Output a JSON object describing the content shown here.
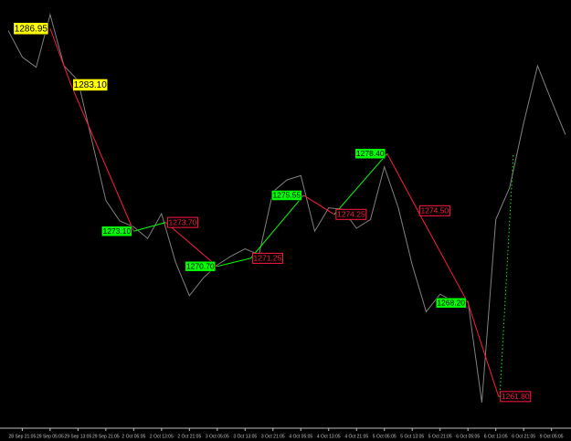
{
  "chart_data": {
    "type": "line",
    "x": [
      0,
      1,
      2,
      3,
      4,
      5,
      6,
      7,
      8,
      9,
      10,
      11,
      12,
      13,
      14,
      15,
      16,
      17,
      18,
      19,
      20,
      21,
      22,
      23,
      24,
      25,
      26,
      27,
      28,
      29,
      30,
      31,
      32,
      33,
      34,
      35,
      36,
      37,
      38,
      39,
      40
    ],
    "categories": [
      null,
      "28 Sep 21:05",
      null,
      "29 Sep 05:05",
      null,
      "29 Sep 13:05",
      null,
      "29 Sep 21:05",
      null,
      "2 Oct 05:05",
      null,
      "2 Oct 13:05",
      null,
      "2 Oct 21:05",
      null,
      "3 Oct 05:05",
      null,
      "3 Oct 13:05",
      null,
      "3 Oct 21:05",
      null,
      "4 Oct 05:05",
      null,
      "4 Oct 13:05",
      null,
      "4 Oct 21:05",
      null,
      "5 Oct 05:05",
      null,
      "5 Oct 13:05",
      null,
      "5 Oct 21:05",
      null,
      "6 Oct 05:05",
      null,
      "6 Oct 13:05",
      null,
      "6 Oct 21:05",
      null,
      "9 Oct 05:05",
      null
    ],
    "series": [
      {
        "color": "#808080",
        "values": [
          1286.8,
          1285.0,
          1284.3,
          1287.9,
          1284.4,
          1283.4,
          1279.3,
          1275.2,
          1273.8,
          1273.4,
          1272.6,
          1274.3,
          1271.0,
          1268.7,
          1269.9,
          1270.8,
          1271.4,
          1271.9,
          1271.5,
          1275.8,
          1276.6,
          1276.9,
          1273.1,
          1274.7,
          1274.6,
          1273.3,
          1273.9,
          1277.5,
          1274.7,
          1270.8,
          1267.6,
          1268.8,
          1268.3,
          1268.3,
          1261.4,
          1273.9,
          1276.1,
          1280.5,
          1284.4,
          1282.0,
          1279.7
        ]
      }
    ],
    "zigzag": {
      "up_color": "#00ff00",
      "down_color": "#ff1a40",
      "x": [
        3,
        4.5,
        9,
        11.3,
        15,
        17.4,
        21.2,
        23.4,
        27.2,
        29.4,
        33,
        35.2
      ],
      "values": [
        1286.95,
        1283.1,
        1273.1,
        1273.7,
        1270.7,
        1271.25,
        1275.55,
        1274.25,
        1278.4,
        1274.5,
        1268.2,
        1261.8
      ],
      "value_labels": [
        "1286.95",
        "1283.10",
        "1273.10",
        "1273.70",
        "1270.70",
        "1271.25",
        "1275.55",
        "1274.25",
        "1278.40",
        "1274.50",
        "1268.20",
        "1261.80"
      ],
      "label_colors": [
        "#ffff00",
        "#ffff00",
        "#00ff00",
        "#ff1a40",
        "#00ff00",
        "#ff1a40",
        "#00ff00",
        "#ff1a40",
        "#00ff00",
        "#ff1a40",
        "#00ff00",
        "#ff1a40"
      ]
    },
    "xlim": [
      -0.6,
      40.4
    ],
    "ylim": [
      1259.7,
      1288.9
    ]
  }
}
